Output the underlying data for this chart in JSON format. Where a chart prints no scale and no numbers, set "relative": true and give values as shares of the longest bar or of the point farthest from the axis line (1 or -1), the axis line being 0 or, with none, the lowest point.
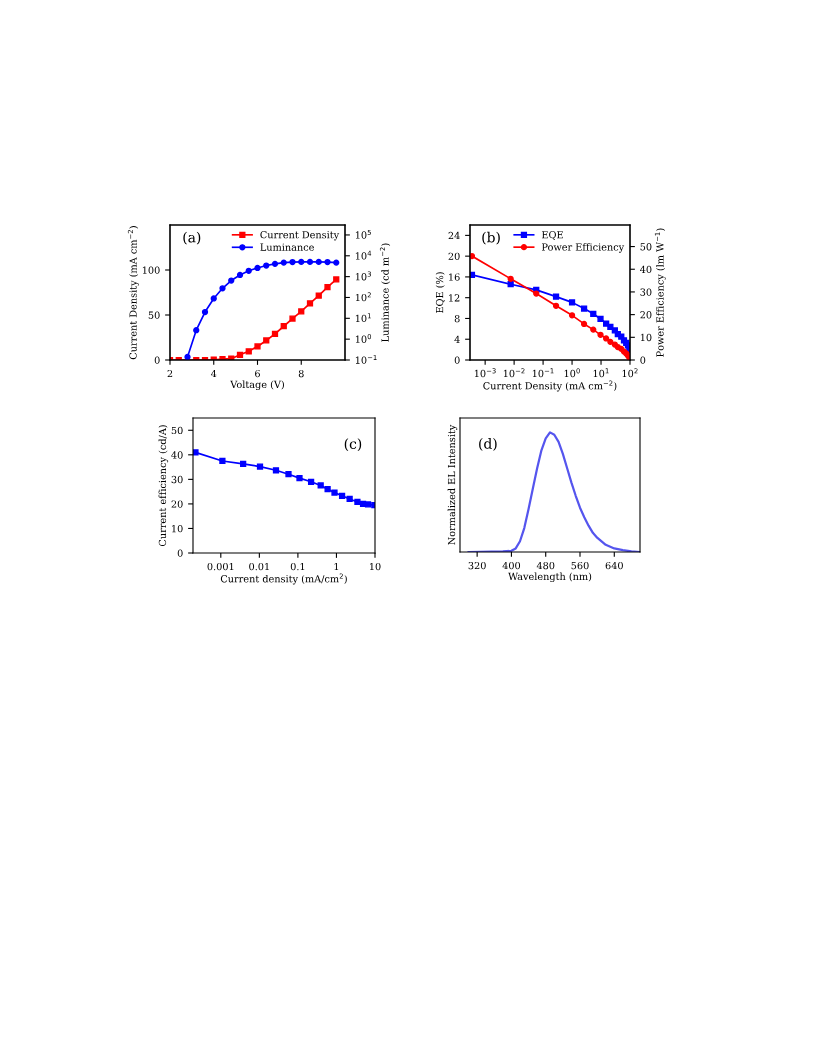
{
  "chart_data": [
    {
      "type": "line",
      "xlabel": "Voltage (V)",
      "ylabel": "Current Density (mA cm$^{−2}$)",
      "y2label": "Luminance (cd m$^{−2}$)",
      "annotations": [
        "(a)"
      ],
      "xlim": [
        2,
        10
      ],
      "xticks": [
        2,
        4,
        6,
        8
      ],
      "ylim": [
        0,
        150
      ],
      "yticks": [
        0,
        50,
        100
      ],
      "y2lim": [
        0.1,
        300000
      ],
      "y2ticks": [
        {
          "value": 0.1,
          "label": "10$^{−1}$"
        },
        {
          "value": 1,
          "label": "10$^{0}$"
        },
        {
          "value": 10,
          "label": "10$^{1}$"
        },
        {
          "value": 100,
          "label": "10$^{2}$"
        },
        {
          "value": 1000,
          "label": "10$^{3}$"
        },
        {
          "value": 10000,
          "label": "10$^{4}$"
        },
        {
          "value": 100000,
          "label": "10$^{5}$"
        }
      ],
      "log": "y2",
      "grid": false,
      "legend": "top right",
      "series": [
        {
          "name": "Current Density",
          "color": "#ff0000",
          "marker": "square",
          "x": [
            2.0,
            2.4,
            3.2,
            3.6,
            4.0,
            4.4,
            4.8,
            5.2,
            5.6,
            6.0,
            6.4,
            6.8,
            7.2,
            7.6,
            8.0,
            8.4,
            8.8,
            9.2,
            9.6
          ],
          "values": [
            0,
            0,
            0,
            0,
            0.3,
            1,
            1.5,
            5.8,
            9.7,
            15,
            21.7,
            29,
            37.5,
            46,
            54,
            63,
            71.5,
            81,
            89.5
          ]
        },
        {
          "name": "Luminance",
          "color": "#0000ff",
          "marker": "circle",
          "axis": "y2",
          "x": [
            2.8,
            3.2,
            3.6,
            4.0,
            4.4,
            4.8,
            5.2,
            5.6,
            6.0,
            6.4,
            6.8,
            7.2,
            7.6,
            8.0,
            8.4,
            8.8,
            9.2,
            9.6
          ],
          "values": [
            0.14,
            2.7,
            20,
            90,
            275,
            650,
            1200,
            1900,
            2600,
            3400,
            4100,
            4700,
            5000,
            5100,
            5100,
            5100,
            5000,
            4700
          ]
        }
      ]
    },
    {
      "type": "line",
      "xlabel": "Current Density (mA cm$^{−2}$)",
      "ylabel": "EQE (%)",
      "y2label": "Power Efficiency (lm W$^{−1}$)",
      "annotations": [
        "(b)"
      ],
      "xlim": [
        0.0003,
        100
      ],
      "xticks": [
        {
          "value": 0.001,
          "label": "10$^{−3}$"
        },
        {
          "value": 0.01,
          "label": "10$^{−2}$"
        },
        {
          "value": 0.1,
          "label": "10$^{−1}$"
        },
        {
          "value": 1,
          "label": "10$^{0}$"
        },
        {
          "value": 10,
          "label": "10$^{1}$"
        },
        {
          "value": 100,
          "label": "10$^{2}$"
        }
      ],
      "ylim": [
        0,
        26
      ],
      "yticks": [
        0,
        4,
        8,
        12,
        16,
        20,
        24
      ],
      "y2lim": [
        0,
        59.5
      ],
      "y2ticks": [
        0,
        10,
        20,
        30,
        40,
        50
      ],
      "log": "x",
      "grid": false,
      "legend": "top right",
      "series": [
        {
          "name": "EQE",
          "color": "#0000ff",
          "marker": "square",
          "x": [
            0.00035,
            0.0076,
            0.058,
            0.28,
            1.0,
            2.6,
            5.4,
            9.6,
            15,
            21,
            30,
            38,
            50,
            62,
            74,
            85,
            95,
            99
          ],
          "values": [
            16.4,
            14.6,
            13.5,
            12.2,
            11.1,
            9.9,
            8.9,
            7.9,
            7.0,
            6.4,
            5.7,
            5.0,
            4.5,
            3.8,
            3.3,
            2.8,
            2.3,
            1.6
          ]
        },
        {
          "name": "Power Efficiency",
          "color": "#ff0000",
          "marker": "circle",
          "axis": "y2",
          "x": [
            0.00035,
            0.0076,
            0.058,
            0.28,
            1.0,
            2.6,
            5.4,
            9.6,
            15,
            21,
            30,
            38,
            50,
            62,
            74,
            85,
            95
          ],
          "values": [
            45.8,
            35.8,
            29.3,
            23.9,
            19.7,
            15.9,
            13.4,
            11.1,
            9.5,
            8.0,
            6.8,
            5.7,
            4.9,
            3.7,
            2.9,
            2.0,
            1.1
          ]
        }
      ]
    },
    {
      "type": "line",
      "xlabel": "Current density (mA/cm$^{2}$)",
      "ylabel": "Current efficiency (cd/A)",
      "annotations": [
        "(c)"
      ],
      "xlim": [
        0.00019,
        10
      ],
      "xticks": [
        {
          "value": 0.001,
          "label": "0.001"
        },
        {
          "value": 0.01,
          "label": "0.01"
        },
        {
          "value": 0.1,
          "label": "0.1"
        },
        {
          "value": 1,
          "label": "1"
        },
        {
          "value": 10,
          "label": "10"
        }
      ],
      "ylim": [
        0,
        55
      ],
      "yticks": [
        0,
        10,
        20,
        30,
        40,
        50
      ],
      "log": "x",
      "grid": false,
      "series": [
        {
          "color": "#0000ff",
          "marker": "square",
          "x": [
            0.00022,
            0.0011,
            0.0038,
            0.0104,
            0.027,
            0.057,
            0.11,
            0.22,
            0.39,
            0.59,
            0.89,
            1.4,
            2.2,
            3.5,
            4.9,
            6.6,
            9.6
          ],
          "values": [
            41.0,
            37.5,
            36.3,
            35.2,
            33.7,
            32.1,
            30.5,
            29.0,
            27.5,
            26.0,
            24.6,
            23.3,
            22.0,
            20.8,
            20.0,
            19.8,
            19.5
          ]
        }
      ]
    },
    {
      "type": "line",
      "xlabel": "Wavelength (nm)",
      "ylabel": "Normalized EL Intensity",
      "annotations": [
        "(d)"
      ],
      "relative": true,
      "tick_labels": "x",
      "xlim": [
        280,
        700
      ],
      "xticks": [
        320,
        400,
        480,
        560,
        640
      ],
      "grid": false,
      "series": [
        {
          "color": "#5555ee",
          "marker": "none",
          "x": [
            300,
            380,
            400,
            410,
            420,
            430,
            440,
            450,
            460,
            470,
            480,
            490,
            500,
            510,
            520,
            530,
            540,
            550,
            560,
            570,
            580,
            590,
            600,
            620,
            640,
            660,
            680,
            700
          ],
          "values": [
            0,
            0.005,
            0.01,
            0.03,
            0.09,
            0.2,
            0.36,
            0.53,
            0.7,
            0.85,
            0.95,
            1.0,
            0.98,
            0.92,
            0.82,
            0.7,
            0.58,
            0.47,
            0.37,
            0.29,
            0.22,
            0.16,
            0.12,
            0.06,
            0.03,
            0.015,
            0.005,
            0
          ]
        }
      ]
    }
  ]
}
